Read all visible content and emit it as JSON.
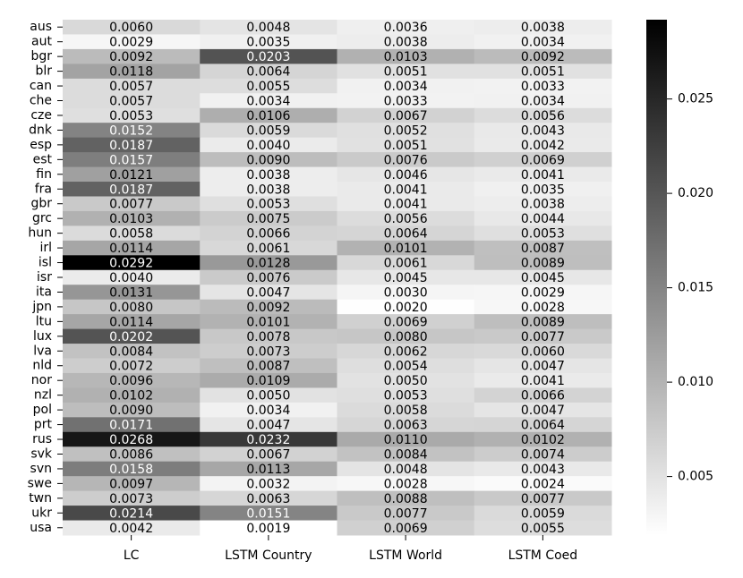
{
  "chart_data": {
    "type": "heatmap",
    "x": [
      "LC",
      "LSTM Country",
      "LSTM World",
      "LSTM Coed"
    ],
    "y": [
      "aus",
      "aut",
      "bgr",
      "blr",
      "can",
      "che",
      "cze",
      "dnk",
      "esp",
      "est",
      "fin",
      "fra",
      "gbr",
      "grc",
      "hun",
      "irl",
      "isl",
      "isr",
      "ita",
      "jpn",
      "ltu",
      "lux",
      "lva",
      "nld",
      "nor",
      "nzl",
      "pol",
      "prt",
      "rus",
      "svk",
      "svn",
      "swe",
      "twn",
      "ukr",
      "usa"
    ],
    "values": [
      [
        0.006,
        0.0048,
        0.0036,
        0.0038
      ],
      [
        0.0029,
        0.0035,
        0.0038,
        0.0034
      ],
      [
        0.0092,
        0.0203,
        0.0103,
        0.0092
      ],
      [
        0.0118,
        0.0064,
        0.0051,
        0.0051
      ],
      [
        0.0057,
        0.0055,
        0.0034,
        0.0033
      ],
      [
        0.0057,
        0.0034,
        0.0033,
        0.0034
      ],
      [
        0.0053,
        0.0106,
        0.0067,
        0.0056
      ],
      [
        0.0152,
        0.0059,
        0.0052,
        0.0043
      ],
      [
        0.0187,
        0.004,
        0.0051,
        0.0042
      ],
      [
        0.0157,
        0.009,
        0.0076,
        0.0069
      ],
      [
        0.0121,
        0.0038,
        0.0046,
        0.0041
      ],
      [
        0.0187,
        0.0038,
        0.0041,
        0.0035
      ],
      [
        0.0077,
        0.0053,
        0.0041,
        0.0038
      ],
      [
        0.0103,
        0.0075,
        0.0056,
        0.0044
      ],
      [
        0.0058,
        0.0066,
        0.0064,
        0.0053
      ],
      [
        0.0114,
        0.0061,
        0.0101,
        0.0087
      ],
      [
        0.0292,
        0.0128,
        0.0061,
        0.0089
      ],
      [
        0.004,
        0.0076,
        0.0045,
        0.0045
      ],
      [
        0.0131,
        0.0047,
        0.003,
        0.0029
      ],
      [
        0.008,
        0.0092,
        0.002,
        0.0028
      ],
      [
        0.0114,
        0.0101,
        0.0069,
        0.0089
      ],
      [
        0.0202,
        0.0078,
        0.008,
        0.0077
      ],
      [
        0.0084,
        0.0073,
        0.0062,
        0.006
      ],
      [
        0.0072,
        0.0087,
        0.0054,
        0.0047
      ],
      [
        0.0096,
        0.0109,
        0.005,
        0.0041
      ],
      [
        0.0102,
        0.005,
        0.0053,
        0.0066
      ],
      [
        0.009,
        0.0034,
        0.0058,
        0.0047
      ],
      [
        0.0171,
        0.0047,
        0.0063,
        0.0064
      ],
      [
        0.0268,
        0.0232,
        0.011,
        0.0102
      ],
      [
        0.0086,
        0.0067,
        0.0084,
        0.0074
      ],
      [
        0.0158,
        0.0113,
        0.0048,
        0.0043
      ],
      [
        0.0097,
        0.0032,
        0.0028,
        0.0024
      ],
      [
        0.0073,
        0.0063,
        0.0088,
        0.0077
      ],
      [
        0.0214,
        0.0151,
        0.0077,
        0.0059
      ],
      [
        0.0042,
        0.0019,
        0.0069,
        0.0055
      ]
    ],
    "value_labels": [
      [
        "0.0060",
        "0.0048",
        "0.0036",
        "0.0038"
      ],
      [
        "0.0029",
        "0.0035",
        "0.0038",
        "0.0034"
      ],
      [
        "0.0092",
        "0.0203",
        "0.0103",
        "0.0092"
      ],
      [
        "0.0118",
        "0.0064",
        "0.0051",
        "0.0051"
      ],
      [
        "0.0057",
        "0.0055",
        "0.0034",
        "0.0033"
      ],
      [
        "0.0057",
        "0.0034",
        "0.0033",
        "0.0034"
      ],
      [
        "0.0053",
        "0.0106",
        "0.0067",
        "0.0056"
      ],
      [
        "0.0152",
        "0.0059",
        "0.0052",
        "0.0043"
      ],
      [
        "0.0187",
        "0.0040",
        "0.0051",
        "0.0042"
      ],
      [
        "0.0157",
        "0.0090",
        "0.0076",
        "0.0069"
      ],
      [
        "0.0121",
        "0.0038",
        "0.0046",
        "0.0041"
      ],
      [
        "0.0187",
        "0.0038",
        "0.0041",
        "0.0035"
      ],
      [
        "0.0077",
        "0.0053",
        "0.0041",
        "0.0038"
      ],
      [
        "0.0103",
        "0.0075",
        "0.0056",
        "0.0044"
      ],
      [
        "0.0058",
        "0.0066",
        "0.0064",
        "0.0053"
      ],
      [
        "0.0114",
        "0.0061",
        "0.0101",
        "0.0087"
      ],
      [
        "0.0292",
        "0.0128",
        "0.0061",
        "0.0089"
      ],
      [
        "0.0040",
        "0.0076",
        "0.0045",
        "0.0045"
      ],
      [
        "0.0131",
        "0.0047",
        "0.0030",
        "0.0029"
      ],
      [
        "0.0080",
        "0.0092",
        "0.0020",
        "0.0028"
      ],
      [
        "0.0114",
        "0.0101",
        "0.0069",
        "0.0089"
      ],
      [
        "0.0202",
        "0.0078",
        "0.0080",
        "0.0077"
      ],
      [
        "0.0084",
        "0.0073",
        "0.0062",
        "0.0060"
      ],
      [
        "0.0072",
        "0.0087",
        "0.0054",
        "0.0047"
      ],
      [
        "0.0096",
        "0.0109",
        "0.0050",
        "0.0041"
      ],
      [
        "0.0102",
        "0.0050",
        "0.0053",
        "0.0066"
      ],
      [
        "0.0090",
        "0.0034",
        "0.0058",
        "0.0047"
      ],
      [
        "0.0171",
        "0.0047",
        "0.0063",
        "0.0064"
      ],
      [
        "0.0268",
        "0.0232",
        "0.0110",
        "0.0102"
      ],
      [
        "0.0086",
        "0.0067",
        "0.0084",
        "0.0074"
      ],
      [
        "0.0158",
        "0.0113",
        "0.0048",
        "0.0043"
      ],
      [
        "0.0097",
        "0.0032",
        "0.0028",
        "0.0024"
      ],
      [
        "0.0073",
        "0.0063",
        "0.0088",
        "0.0077"
      ],
      [
        "0.0214",
        "0.0151",
        "0.0077",
        "0.0059"
      ],
      [
        "0.0042",
        "0.0019",
        "0.0069",
        "0.0055"
      ]
    ],
    "zlim": [
      0.0019,
      0.0292
    ],
    "zticks": [
      0.005,
      {
        "value": 0.01,
        "label": "0.010"
      },
      0.015,
      {
        "value": 0.02,
        "label": "0.020"
      },
      0.025
    ],
    "colormap": "gray_r"
  }
}
